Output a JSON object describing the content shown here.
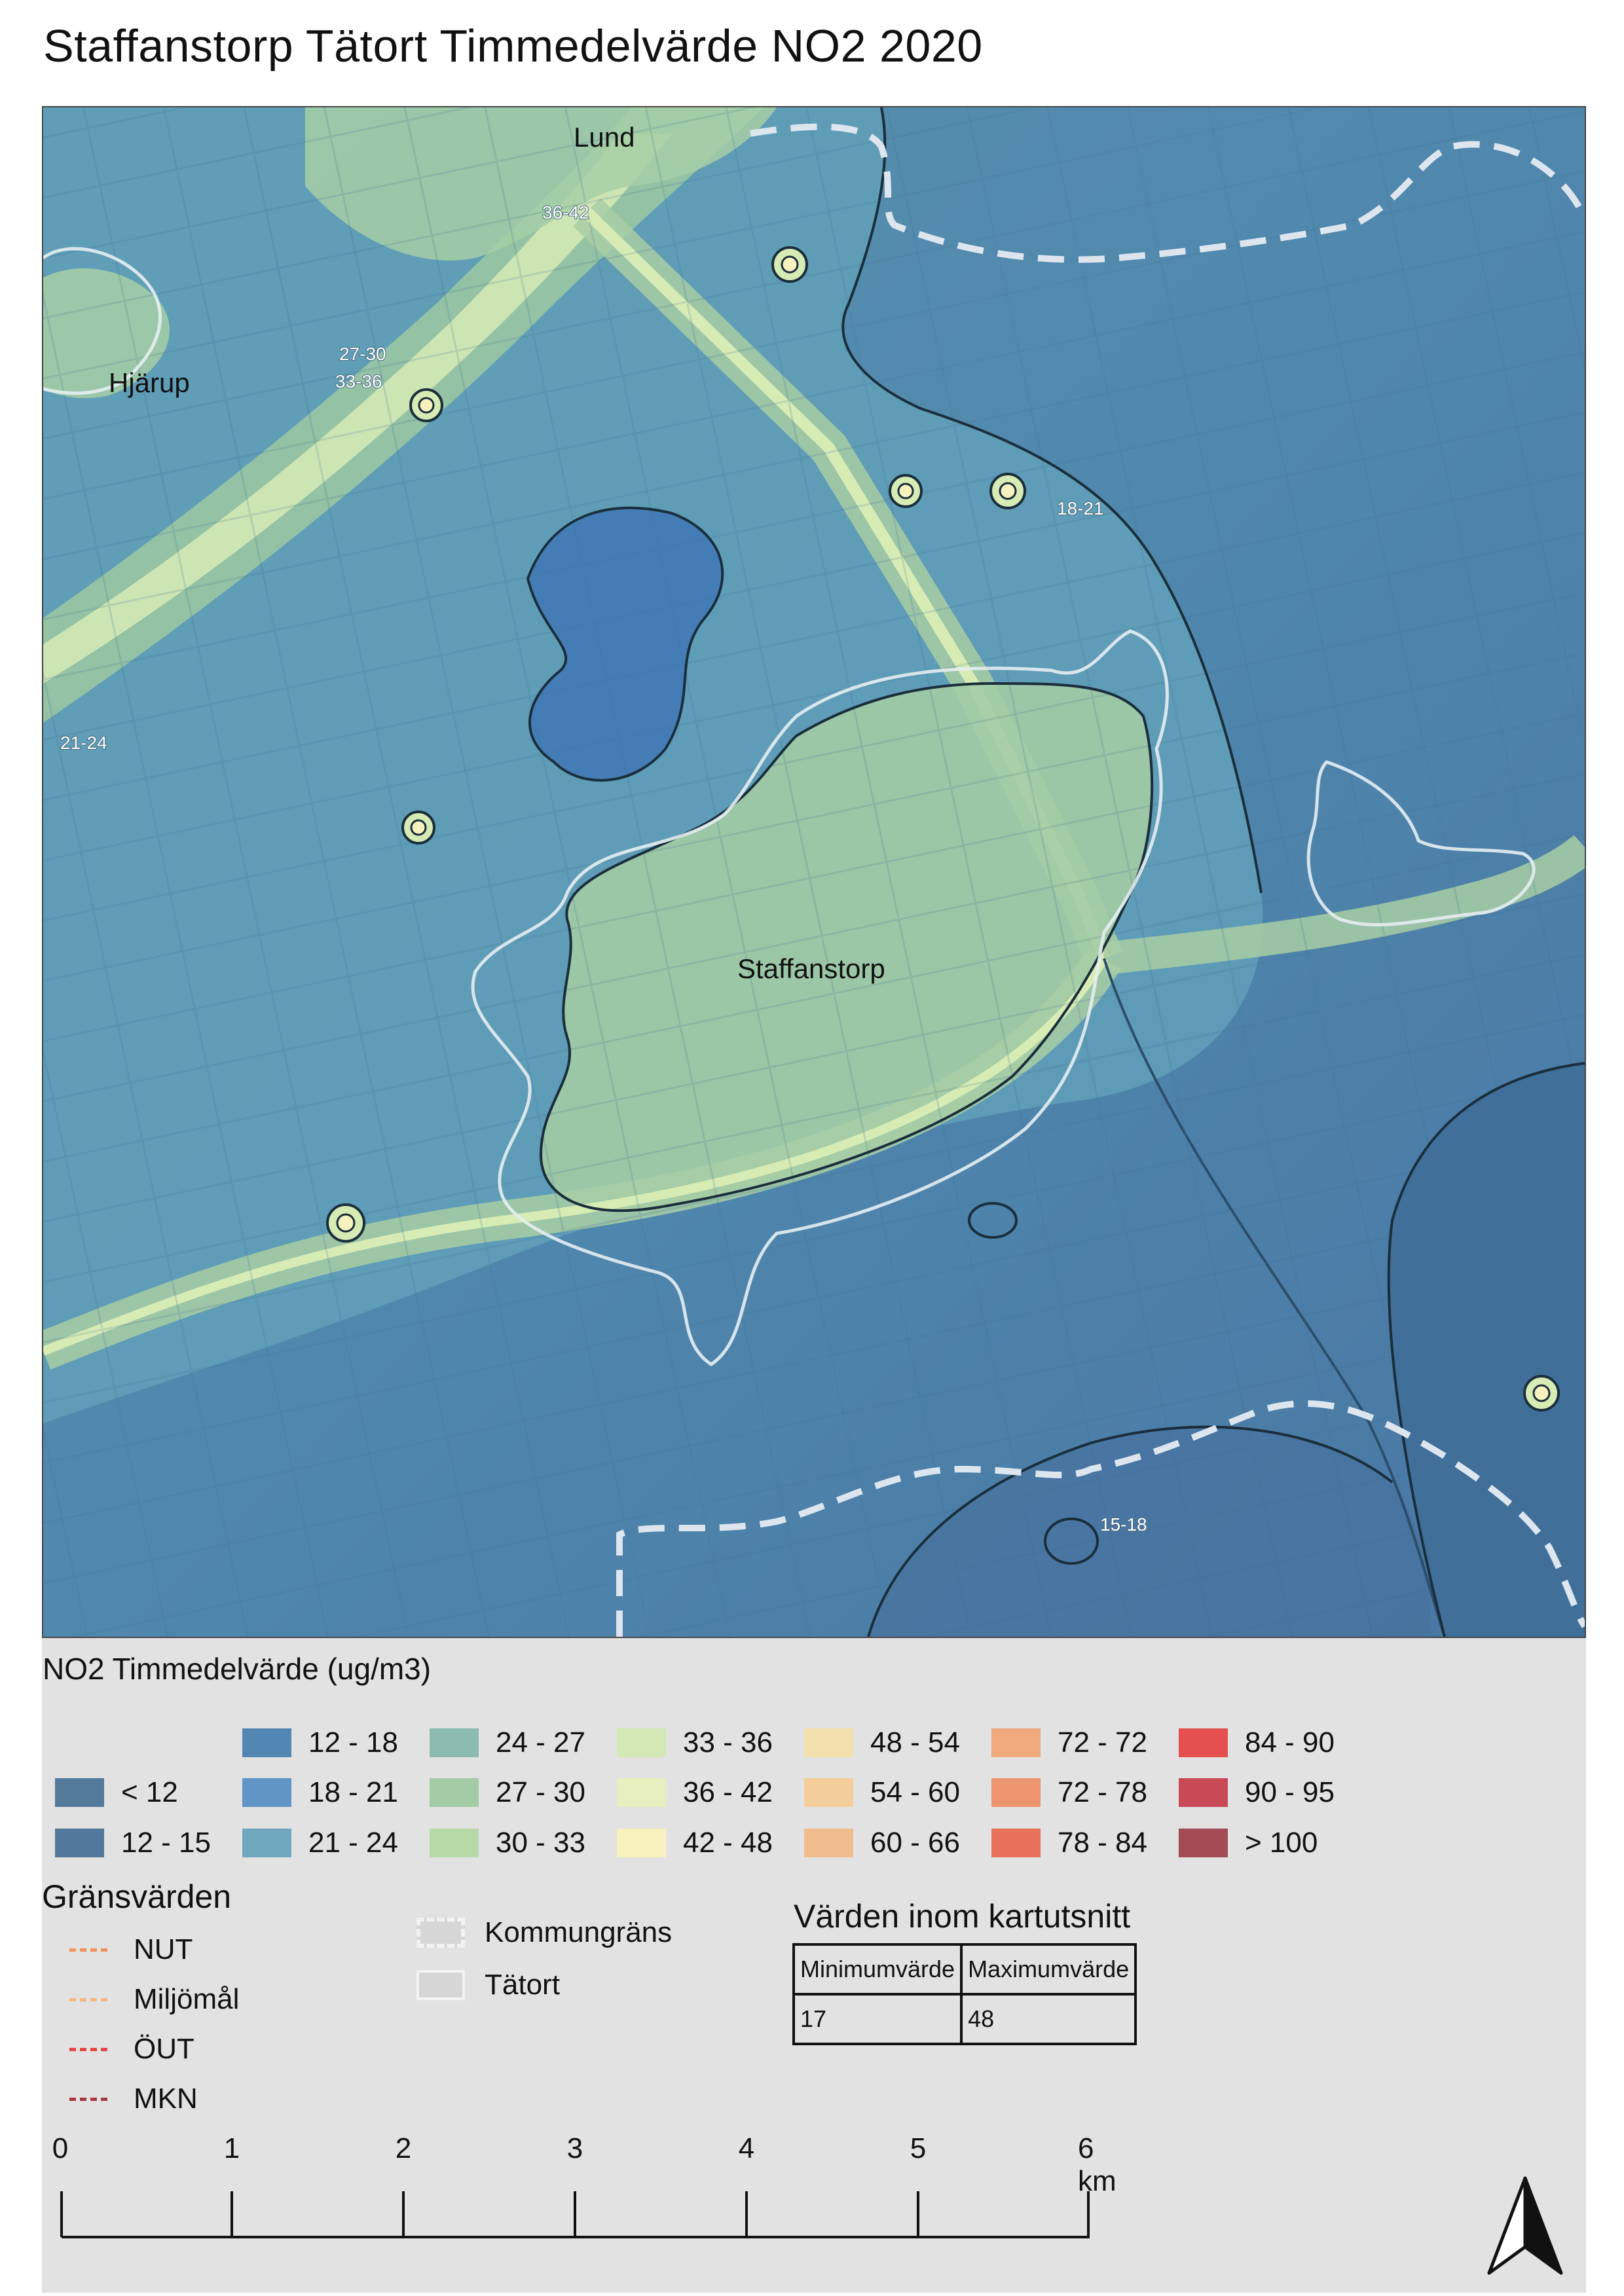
{
  "title": "Staffanstorp Tätort Timmedelvärde NO2 2020",
  "map": {
    "place_labels": [
      "Lund",
      "Hjärup",
      "Staffanstorp"
    ],
    "contour_labels": [
      "36-42",
      "27-30",
      "33-36",
      "18-21",
      "21-24",
      "15-18"
    ],
    "colors": {
      "lt12": "#53799b",
      "c12_15": "#52799c",
      "c12_18": "#5387b3",
      "c18_21": "#6095c6",
      "c21_24": "#6fa7be",
      "c24_27": "#8cbcb0",
      "c27_30": "#a2cba6",
      "c30_33": "#b6d9a8",
      "c33_36": "#d3e8b4",
      "c36_42": "#e6efbd",
      "c42_48": "#f6f1bd",
      "road": "#f3edc4",
      "kommungrans": "#dde6ee",
      "tatort": "#e6eef2"
    }
  },
  "legend": {
    "title": "NO2 Timmedelvärde (ug/m3)",
    "classes": [
      {
        "label": "< 12",
        "color": "#53799b"
      },
      {
        "label": "12 - 15",
        "color": "#52799c"
      },
      {
        "label": "12 - 18",
        "color": "#5387b3"
      },
      {
        "label": "18 - 21",
        "color": "#6095c6"
      },
      {
        "label": "21 - 24",
        "color": "#6fa7be"
      },
      {
        "label": "24 - 27",
        "color": "#8cbcb0"
      },
      {
        "label": "27 - 30",
        "color": "#a2cba6"
      },
      {
        "label": "30 - 33",
        "color": "#b6d9a8"
      },
      {
        "label": "33 - 36",
        "color": "#d3e8b4"
      },
      {
        "label": "36 - 42",
        "color": "#e6efbd"
      },
      {
        "label": "42 - 48",
        "color": "#f6f1bd"
      },
      {
        "label": "48 - 54",
        "color": "#f4e0ad"
      },
      {
        "label": "54 - 60",
        "color": "#f3ce9b"
      },
      {
        "label": "60 - 66",
        "color": "#f1bc8b"
      },
      {
        "label": "72 - 72",
        "color": "#efa97c"
      },
      {
        "label": "72 - 78",
        "color": "#ec946e"
      },
      {
        "label": "78 - 84",
        "color": "#e8715c"
      },
      {
        "label": "84 - 90",
        "color": "#e3504f"
      },
      {
        "label": "90 - 95",
        "color": "#c94a57"
      },
      {
        "label": "> 100",
        "color": "#a24c56"
      }
    ]
  },
  "gransvarden": {
    "title": "Gränsvärden",
    "items": [
      {
        "label": "NUT",
        "color": "#f0925c"
      },
      {
        "label": "Miljömål",
        "color": "#f3b77f"
      },
      {
        "label": "ÖUT",
        "color": "#e5453f"
      },
      {
        "label": "MKN",
        "color": "#a7383d"
      }
    ]
  },
  "boundaries": {
    "kommungrans": "Kommungräns",
    "tatort": "Tätort"
  },
  "stats": {
    "title": "Värden inom kartutsnitt",
    "headers": [
      "Minimumvärde",
      "Maximumvärde"
    ],
    "values": [
      "17",
      "48"
    ]
  },
  "scalebar": {
    "ticks": [
      "0",
      "1",
      "2",
      "3",
      "4",
      "5",
      "6 km"
    ]
  },
  "north_arrow": "north-arrow-icon"
}
